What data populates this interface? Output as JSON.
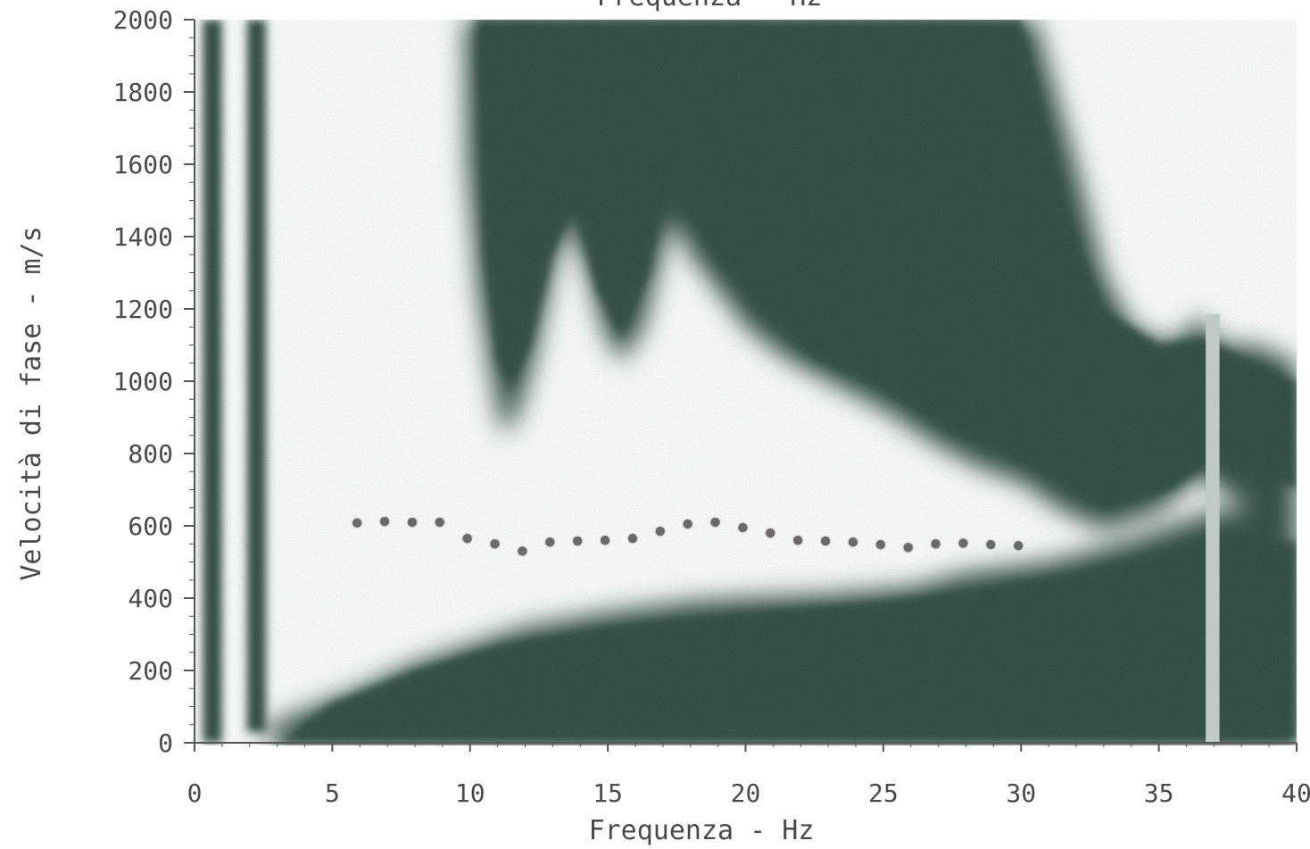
{
  "chart_data": {
    "type": "heatmap",
    "top_label": "Frequenza - Hz",
    "xlabel": "Frequenza - Hz",
    "ylabel": "Velocità di fase - m/s",
    "xlim": [
      0,
      40
    ],
    "ylim": [
      0,
      2000
    ],
    "x_ticks": [
      0,
      5,
      10,
      15,
      20,
      25,
      30,
      35,
      40
    ],
    "y_ticks": [
      0,
      200,
      400,
      600,
      800,
      1000,
      1200,
      1400,
      1600,
      1800,
      2000
    ],
    "x_tick_labels": [
      "0",
      "5",
      "10",
      "15",
      "20",
      "25",
      "30",
      "35",
      "40"
    ],
    "y_tick_labels": [
      "0",
      "200",
      "400",
      "600",
      "800",
      "1000",
      "1200",
      "1400",
      "1600",
      "1800",
      "2000"
    ],
    "colors": {
      "energy": "#2f4a3f",
      "background": "#ffffff",
      "axis": "#555555",
      "text": "#4a4a4a",
      "marker": "#6a6a6a"
    },
    "series": [
      {
        "type": "scatter",
        "x": [
          5.9,
          6.9,
          7.9,
          8.9,
          9.9,
          10.9,
          11.9,
          12.9,
          13.9,
          14.9,
          15.9,
          16.9,
          17.9,
          18.9,
          19.9,
          20.9,
          21.9,
          22.9,
          23.9,
          24.9,
          25.9,
          26.9,
          27.9,
          28.9,
          29.9
        ],
        "y": [
          608,
          612,
          610,
          610,
          565,
          550,
          530,
          555,
          558,
          560,
          565,
          585,
          605,
          610,
          595,
          580,
          560,
          558,
          555,
          548,
          540,
          550,
          552,
          548,
          545
        ]
      }
    ]
  }
}
